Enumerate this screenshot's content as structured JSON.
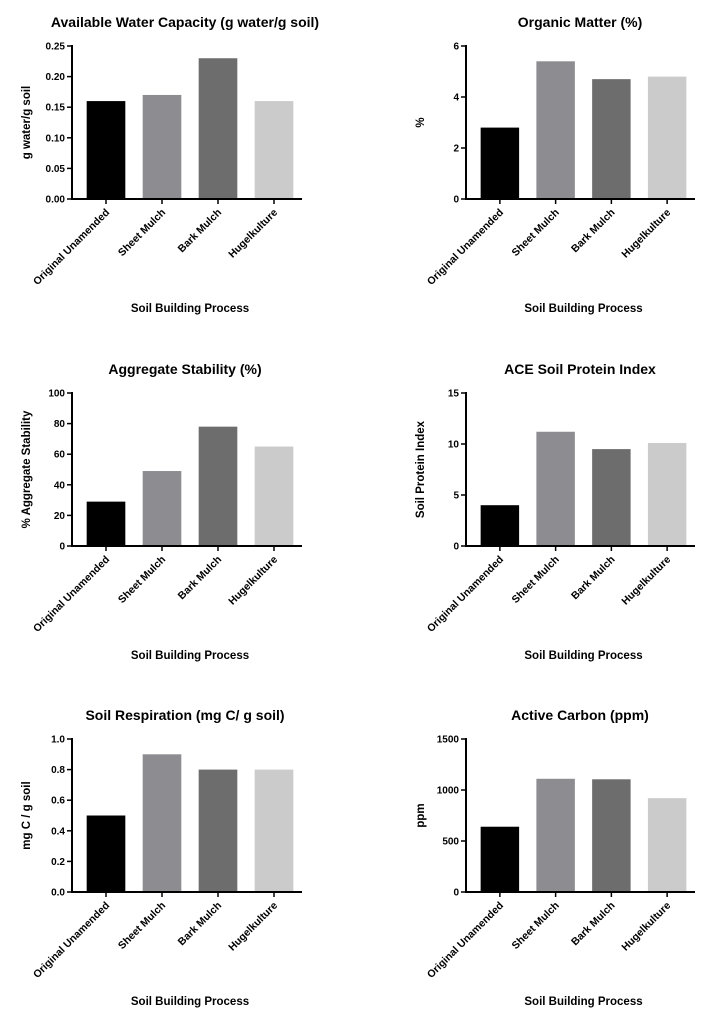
{
  "chart_data": [
    {
      "type": "bar",
      "title": "Available Water Capacity (g water/g soil)",
      "xlabel": "Soil Building Process",
      "ylabel": "g water/g soil",
      "categories": [
        "Original Unamended",
        "Sheet Mulch",
        "Bark Mulch",
        "Hugelkulture"
      ],
      "values": [
        0.16,
        0.17,
        0.23,
        0.16
      ],
      "ylim": [
        0,
        0.25
      ],
      "yticks": [
        "0.00",
        "0.05",
        "0.10",
        "0.15",
        "0.20",
        "0.25"
      ],
      "colors": [
        "#000000",
        "#8c8c91",
        "#6d6d6d",
        "#cbcbcb"
      ]
    },
    {
      "type": "bar",
      "title": "Organic Matter (%)",
      "xlabel": "Soil Building Process",
      "ylabel": "%",
      "categories": [
        "Original Unamended",
        "Sheet Mulch",
        "Bark Mulch",
        "Hugelkulture"
      ],
      "values": [
        2.8,
        5.4,
        4.7,
        4.8
      ],
      "ylim": [
        0,
        6
      ],
      "yticks": [
        "0",
        "2",
        "4",
        "6"
      ],
      "colors": [
        "#000000",
        "#8c8c91",
        "#6d6d6d",
        "#cbcbcb"
      ]
    },
    {
      "type": "bar",
      "title": "Aggregate Stability (%)",
      "xlabel": "Soil Building Process",
      "ylabel": "% Aggregate Stability",
      "categories": [
        "Original Unamended",
        "Sheet Mulch",
        "Bark Mulch",
        "Hugelkulture"
      ],
      "values": [
        29,
        49,
        78,
        65
      ],
      "ylim": [
        0,
        100
      ],
      "yticks": [
        "0",
        "20",
        "40",
        "60",
        "80",
        "100"
      ],
      "colors": [
        "#000000",
        "#8c8c91",
        "#6d6d6d",
        "#cbcbcb"
      ]
    },
    {
      "type": "bar",
      "title": "ACE Soil Protein Index",
      "xlabel": "Soil Building Process",
      "ylabel": "Soil Protein Index",
      "categories": [
        "Original Unamended",
        "Sheet Mulch",
        "Bark Mulch",
        "Hugelkulture"
      ],
      "values": [
        4.0,
        11.2,
        9.5,
        10.1
      ],
      "ylim": [
        0,
        15
      ],
      "yticks": [
        "0",
        "5",
        "10",
        "15"
      ],
      "colors": [
        "#000000",
        "#8c8c91",
        "#6d6d6d",
        "#cbcbcb"
      ]
    },
    {
      "type": "bar",
      "title": "Soil Respiration (mg C/ g soil)",
      "xlabel": "Soil Building Process",
      "ylabel": "mg C / g soil",
      "categories": [
        "Original Unamended",
        "Sheet Mulch",
        "Bark Mulch",
        "Hugelkulture"
      ],
      "values": [
        0.5,
        0.9,
        0.8,
        0.8
      ],
      "ylim": [
        0,
        1.0
      ],
      "yticks": [
        "0.0",
        "0.2",
        "0.4",
        "0.6",
        "0.8",
        "1.0"
      ],
      "colors": [
        "#000000",
        "#8c8c91",
        "#6d6d6d",
        "#cbcbcb"
      ]
    },
    {
      "type": "bar",
      "title": "Active Carbon (ppm)",
      "xlabel": "Soil Building Process",
      "ylabel": "ppm",
      "categories": [
        "Original Unamended",
        "Sheet Mulch",
        "Bark Mulch",
        "Hugelkulture"
      ],
      "values": [
        640,
        1110,
        1105,
        920
      ],
      "ylim": [
        0,
        1500
      ],
      "yticks": [
        "0",
        "500",
        "1000",
        "1500"
      ],
      "colors": [
        "#000000",
        "#8c8c91",
        "#6d6d6d",
        "#cbcbcb"
      ]
    }
  ]
}
